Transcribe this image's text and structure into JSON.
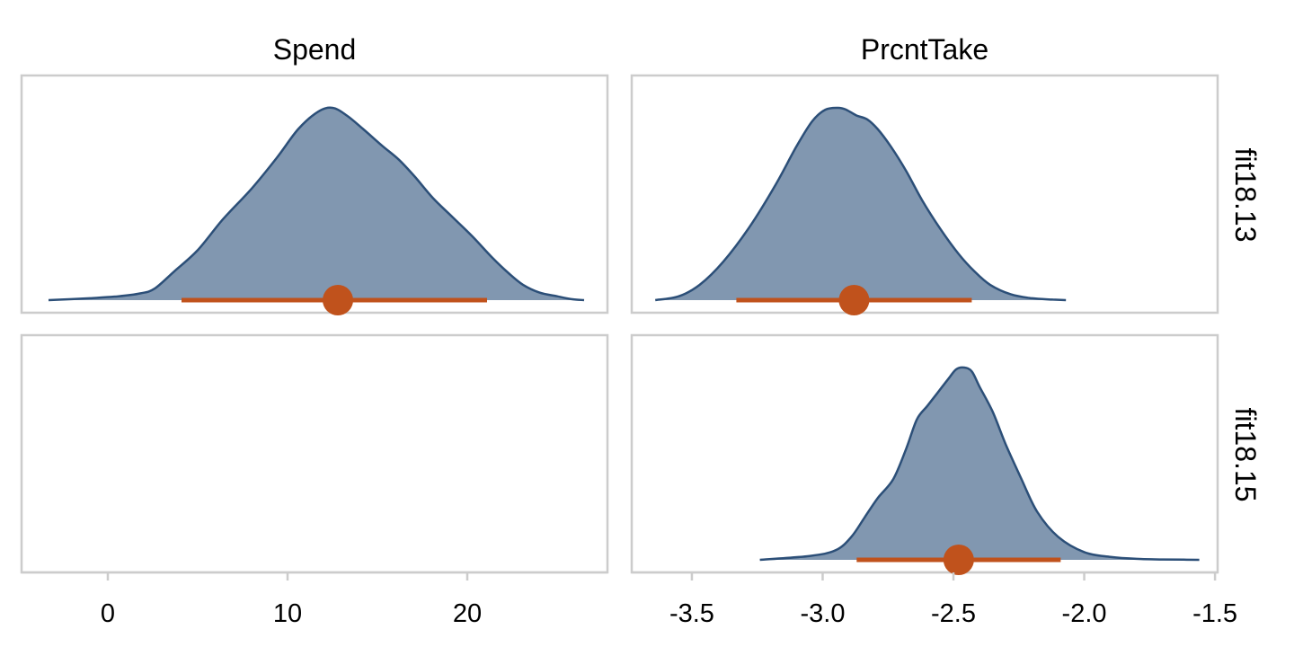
{
  "chart_data": {
    "type": "area",
    "columns": [
      {
        "title": "Spend",
        "xlim": [
          -4.8,
          27.8
        ],
        "ticks": [
          0,
          10,
          20
        ],
        "tick_labels": [
          "0",
          "10",
          "20"
        ]
      },
      {
        "title": "PrcntTake",
        "xlim": [
          -3.73,
          -1.49
        ],
        "ticks": [
          -3.5,
          -3.0,
          -2.5,
          -2.0,
          -1.5
        ],
        "tick_labels": [
          "-3.5",
          "-3.0",
          "-2.5",
          "-2.0",
          "-1.5"
        ]
      }
    ],
    "rows": [
      {
        "label": "fit18.13"
      },
      {
        "label": "fit18.15"
      }
    ],
    "panels": [
      {
        "id": "spend-fit18.13",
        "row": 0,
        "col": 0,
        "density": {
          "x": [
            -3.3,
            -1.0,
            0.6,
            1.8,
            2.6,
            3.7,
            5.0,
            6.4,
            8.0,
            9.4,
            10.6,
            11.7,
            12.5,
            13.3,
            14.2,
            15.3,
            16.2,
            17.1,
            18.1,
            19.2,
            20.3,
            21.4,
            22.3,
            23.1,
            24.0,
            25.0,
            25.8,
            26.5
          ],
          "y": [
            0.0,
            0.01,
            0.02,
            0.035,
            0.06,
            0.15,
            0.26,
            0.42,
            0.58,
            0.74,
            0.89,
            0.98,
            1.0,
            0.96,
            0.89,
            0.8,
            0.73,
            0.64,
            0.53,
            0.43,
            0.33,
            0.22,
            0.14,
            0.08,
            0.04,
            0.02,
            0.005,
            0.0
          ]
        },
        "interval": {
          "low": 4.1,
          "high": 21.1,
          "point": 12.8
        }
      },
      {
        "id": "prcnttake-fit18.13",
        "row": 0,
        "col": 1,
        "density": {
          "x": [
            -3.64,
            -3.55,
            -3.47,
            -3.38,
            -3.28,
            -3.18,
            -3.1,
            -3.04,
            -2.99,
            -2.94,
            -2.91,
            -2.87,
            -2.83,
            -2.79,
            -2.74,
            -2.68,
            -2.62,
            -2.55,
            -2.48,
            -2.42,
            -2.36,
            -2.28,
            -2.2,
            -2.12,
            -2.07
          ],
          "y": [
            0.0,
            0.02,
            0.08,
            0.2,
            0.38,
            0.6,
            0.8,
            0.93,
            0.99,
            1.0,
            0.99,
            0.96,
            0.94,
            0.89,
            0.8,
            0.67,
            0.52,
            0.37,
            0.24,
            0.15,
            0.08,
            0.03,
            0.01,
            0.003,
            0.0
          ]
        },
        "interval": {
          "low": -3.33,
          "high": -2.43,
          "point": -2.88
        }
      },
      {
        "id": "prcnttake-fit18.15",
        "row": 1,
        "col": 1,
        "density": {
          "x": [
            -3.24,
            -3.05,
            -2.95,
            -2.89,
            -2.84,
            -2.79,
            -2.73,
            -2.68,
            -2.64,
            -2.6,
            -2.56,
            -2.52,
            -2.49,
            -2.46,
            -2.43,
            -2.4,
            -2.35,
            -2.3,
            -2.24,
            -2.18,
            -2.1,
            -2.0,
            -1.9,
            -1.8,
            -1.7,
            -1.62,
            -1.56
          ],
          "y": [
            0.0,
            0.02,
            0.05,
            0.12,
            0.22,
            0.32,
            0.42,
            0.58,
            0.73,
            0.8,
            0.87,
            0.94,
            0.99,
            1.0,
            0.98,
            0.9,
            0.77,
            0.6,
            0.42,
            0.25,
            0.12,
            0.04,
            0.015,
            0.005,
            0.002,
            0.001,
            0.0
          ]
        },
        "interval": {
          "low": -2.87,
          "high": -2.09,
          "point": -2.48
        }
      }
    ],
    "colors": {
      "fill": "#8197b0",
      "outline": "#2c4f78",
      "interval": "#c0521c",
      "panel_border": "#cccccc"
    },
    "grid": false,
    "legend": "none"
  }
}
